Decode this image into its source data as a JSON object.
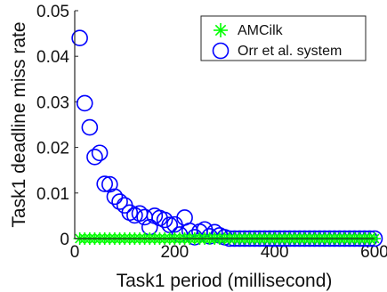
{
  "chart_data": {
    "type": "scatter",
    "xlabel": "Task1 period (millisecond)",
    "ylabel": "Task1 deadline miss rate",
    "xlim": [
      0,
      600
    ],
    "ylim": [
      0,
      0.05
    ],
    "x_ticks": [
      0,
      200,
      400,
      600
    ],
    "x_tick_labels": [
      "0",
      "200",
      "400",
      "600"
    ],
    "y_ticks": [
      0,
      0.01,
      0.02,
      0.03,
      0.04,
      0.05
    ],
    "y_tick_labels": [
      "0",
      "0.01",
      "0.02",
      "0.03",
      "0.04",
      "0.05"
    ],
    "grid": false,
    "legend_position": "top-right",
    "series": [
      {
        "name": "AMCilk",
        "marker": "asterisk",
        "color": "#00ff00",
        "x": [
          10,
          20,
          30,
          40,
          50,
          60,
          70,
          80,
          90,
          100,
          110,
          120,
          130,
          140,
          150,
          160,
          170,
          180,
          190,
          200,
          210,
          220,
          230,
          240,
          250,
          260,
          270,
          280,
          290,
          300,
          310,
          320,
          330,
          340,
          350,
          360,
          370,
          380,
          390,
          400,
          410,
          420,
          430,
          440,
          450,
          460,
          470,
          480,
          490,
          500,
          510,
          520,
          530,
          540,
          550,
          560,
          570,
          580,
          590,
          600
        ],
        "y": [
          0,
          0,
          0,
          0,
          0,
          0,
          0,
          0,
          0,
          0,
          0,
          0,
          0,
          0,
          0,
          0,
          0,
          0,
          0,
          0,
          0,
          0,
          0,
          0,
          0,
          0,
          0,
          0,
          0,
          0,
          0,
          0,
          0,
          0,
          0,
          0,
          0,
          0,
          0,
          0,
          0,
          0,
          0,
          0,
          0,
          0,
          0,
          0,
          0,
          0,
          0,
          0,
          0,
          0,
          0,
          0,
          0,
          0,
          0,
          0
        ]
      },
      {
        "name": "Orr et al. system",
        "marker": "circle",
        "color": "#0000ff",
        "x": [
          10,
          20,
          30,
          40,
          50,
          60,
          70,
          80,
          90,
          100,
          110,
          120,
          130,
          140,
          150,
          160,
          170,
          180,
          190,
          200,
          210,
          220,
          230,
          240,
          250,
          260,
          270,
          280,
          290,
          300,
          310,
          320,
          330,
          340,
          350,
          360,
          370,
          380,
          390,
          400,
          410,
          420,
          430,
          440,
          450,
          460,
          470,
          480,
          490,
          500,
          510,
          520,
          530,
          540,
          550,
          560,
          570,
          580,
          590,
          600
        ],
        "y": [
          0.044,
          0.0297,
          0.0244,
          0.0179,
          0.0188,
          0.012,
          0.0119,
          0.0092,
          0.0081,
          0.0073,
          0.0057,
          0.0051,
          0.0055,
          0.0047,
          0.0025,
          0.005,
          0.0045,
          0.0041,
          0.003,
          0.0031,
          0.0009,
          0.0046,
          0.0017,
          0.0003,
          0.0015,
          0.002,
          0.0005,
          0.0014,
          0.0007,
          0.0003,
          0,
          0,
          0,
          0,
          0,
          0,
          0,
          0,
          0,
          0,
          0,
          0,
          0,
          0,
          0,
          0,
          0,
          0,
          0,
          0,
          0,
          0,
          0,
          0,
          0,
          0,
          0,
          0,
          0,
          0
        ]
      }
    ]
  }
}
